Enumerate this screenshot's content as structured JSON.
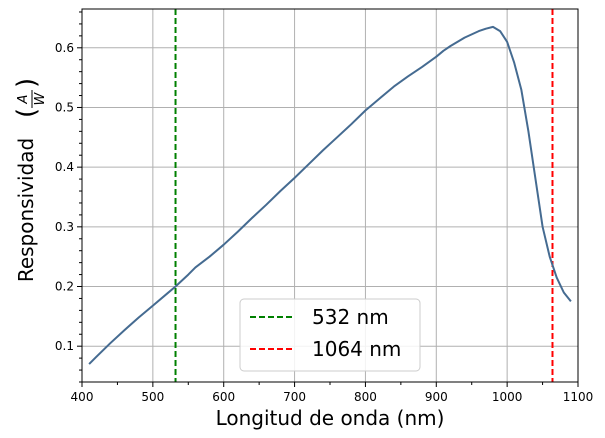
{
  "chart_data": {
    "type": "line",
    "xlabel": "Longitud de onda (nm)",
    "ylabel": "Responsividad",
    "ylabel_fraction": {
      "numerator": "A",
      "denominator": "W"
    },
    "xlim": [
      400,
      1100
    ],
    "ylim": [
      0.04,
      0.665
    ],
    "xticks": [
      400,
      500,
      600,
      700,
      800,
      900,
      1000,
      1100
    ],
    "yticks": [
      0.1,
      0.2,
      0.3,
      0.4,
      0.5,
      0.6
    ],
    "ytick_labels": [
      "0.1",
      "0.2",
      "0.3",
      "0.4",
      "0.5",
      "0.6"
    ],
    "grid": true,
    "legend_position": "bottom-center",
    "series": [
      {
        "color": "#456b91",
        "x": [
          410,
          420,
          440,
          460,
          480,
          500,
          520,
          532,
          550,
          560,
          580,
          600,
          620,
          640,
          660,
          680,
          700,
          720,
          740,
          760,
          780,
          800,
          820,
          840,
          860,
          880,
          900,
          910,
          920,
          940,
          960,
          970,
          980,
          990,
          1000,
          1010,
          1020,
          1030,
          1040,
          1050,
          1060,
          1070,
          1080,
          1090
        ],
        "y": [
          0.07,
          0.082,
          0.105,
          0.127,
          0.148,
          0.168,
          0.188,
          0.2,
          0.22,
          0.232,
          0.25,
          0.27,
          0.292,
          0.315,
          0.337,
          0.36,
          0.382,
          0.405,
          0.428,
          0.45,
          0.472,
          0.495,
          0.515,
          0.535,
          0.552,
          0.568,
          0.585,
          0.595,
          0.603,
          0.617,
          0.628,
          0.632,
          0.635,
          0.628,
          0.61,
          0.575,
          0.53,
          0.46,
          0.38,
          0.3,
          0.25,
          0.215,
          0.19,
          0.175
        ]
      }
    ],
    "vlines": [
      {
        "x": 532,
        "label": "532 nm",
        "color": "#008000"
      },
      {
        "x": 1064,
        "label": "1064 nm",
        "color": "#ff0000"
      }
    ]
  }
}
